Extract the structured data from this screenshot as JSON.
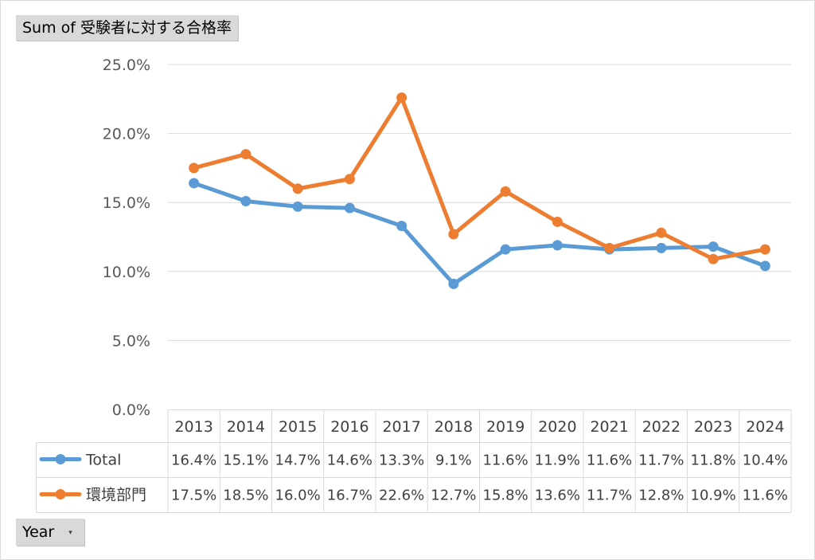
{
  "value_field_button": "Sum of 受験者に対する合格率",
  "axis_field_button": "Year",
  "dropdown_icon": "chevron-down-icon",
  "chart_data": {
    "type": "line",
    "categories": [
      "2013",
      "2014",
      "2015",
      "2016",
      "2017",
      "2018",
      "2019",
      "2020",
      "2021",
      "2022",
      "2023",
      "2024"
    ],
    "series": [
      {
        "name": "Total",
        "color": "#5b9bd5",
        "values": [
          16.4,
          15.1,
          14.7,
          14.6,
          13.3,
          9.1,
          11.6,
          11.9,
          11.6,
          11.7,
          11.8,
          10.4
        ],
        "labels": [
          "16.4%",
          "15.1%",
          "14.7%",
          "14.6%",
          "13.3%",
          "9.1%",
          "11.6%",
          "11.9%",
          "11.6%",
          "11.7%",
          "11.8%",
          "10.4%"
        ]
      },
      {
        "name": "環境部門",
        "color": "#ed7d31",
        "values": [
          17.5,
          18.5,
          16.0,
          16.7,
          22.6,
          12.7,
          15.8,
          13.6,
          11.7,
          12.8,
          10.9,
          11.6
        ],
        "labels": [
          "17.5%",
          "18.5%",
          "16.0%",
          "16.7%",
          "22.6%",
          "12.7%",
          "15.8%",
          "13.6%",
          "11.7%",
          "12.8%",
          "10.9%",
          "11.6%"
        ]
      }
    ],
    "ylim": [
      0,
      25
    ],
    "yticks": [
      "0.0%",
      "5.0%",
      "10.0%",
      "15.0%",
      "20.0%",
      "25.0%"
    ],
    "grid": true,
    "data_table": true
  }
}
